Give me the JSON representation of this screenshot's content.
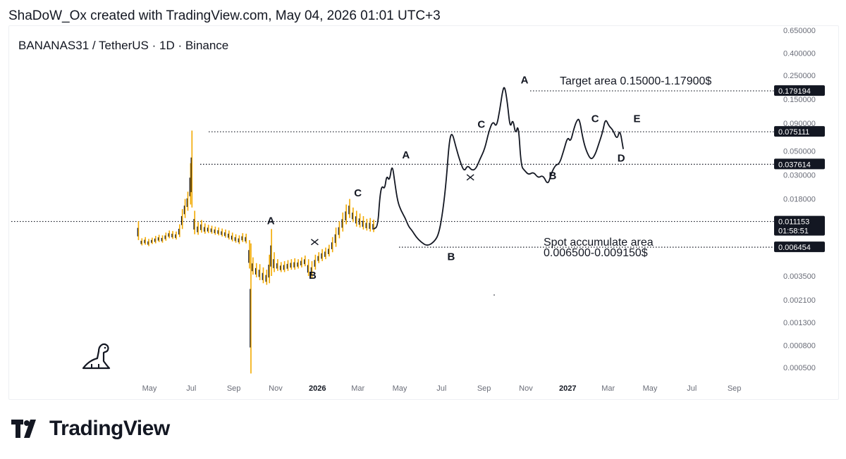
{
  "header": {
    "text": "ShaDoW_Ox created with TradingView.com, May 04, 2026 01:01 UTC+3"
  },
  "symbol": {
    "text": "BANANAS31 / TetherUS · 1D · Binance"
  },
  "brand": {
    "name": "TradingView",
    "logo_icon": "tradingview-logo-icon",
    "dino_icon": "dinosaur-icon"
  },
  "colors": {
    "candle": "#f2a900",
    "line": "#131722",
    "badge": "#131722",
    "dotted": "#131722"
  },
  "chart_data": {
    "type": "line",
    "title": "BANANAS31 / TetherUS · 1D · Binance",
    "y_scale": "log",
    "y_ticks": [
      "0.650000",
      "0.400000",
      "0.250000",
      "0.150000",
      "0.090000",
      "0.050000",
      "0.030000",
      "0.018000",
      "0.006454",
      "0.003500",
      "0.002100",
      "0.001300",
      "0.000800",
      "0.000500"
    ],
    "x_ticks": [
      {
        "label": "May",
        "bold": false
      },
      {
        "label": "Jul",
        "bold": false
      },
      {
        "label": "Sep",
        "bold": false
      },
      {
        "label": "Nov",
        "bold": false
      },
      {
        "label": "2026",
        "bold": true
      },
      {
        "label": "Mar",
        "bold": false
      },
      {
        "label": "May",
        "bold": false
      },
      {
        "label": "Jul",
        "bold": false
      },
      {
        "label": "Sep",
        "bold": false
      },
      {
        "label": "Nov",
        "bold": false
      },
      {
        "label": "2027",
        "bold": true
      },
      {
        "label": "Mar",
        "bold": false
      },
      {
        "label": "May",
        "bold": false
      },
      {
        "label": "Jul",
        "bold": false
      },
      {
        "label": "Sep",
        "bold": false
      }
    ],
    "price_lines": [
      {
        "value": 0.179194,
        "label": "0.179194"
      },
      {
        "value": 0.075111,
        "label": "0.075111"
      },
      {
        "value": 0.037614,
        "label": "0.037614"
      },
      {
        "value": 0.011153,
        "label": "0.011153",
        "sublabel": "01:58:51"
      },
      {
        "value": 0.006454,
        "label": "0.006454"
      }
    ],
    "annotations": [
      {
        "text": "Target area 0.15000-1.17900$"
      },
      {
        "text": "Spot accumulate area"
      },
      {
        "text": "0.006500-0.009150$"
      }
    ],
    "wave_labels": [
      {
        "text": "A",
        "date": "2025-10-25",
        "price": 0.0105
      },
      {
        "text": "B",
        "date": "2025-12-25",
        "price": 0.0033
      },
      {
        "text": "C",
        "date": "2026-03-01",
        "price": 0.019
      },
      {
        "text": "A",
        "date": "2026-05-10",
        "price": 0.0425
      },
      {
        "text": "B",
        "date": "2026-07-15",
        "price": 0.0049
      },
      {
        "text": "C",
        "date": "2026-08-28",
        "price": 0.082
      },
      {
        "text": "A",
        "date": "2026-10-30",
        "price": 0.21
      },
      {
        "text": "B",
        "date": "2026-12-10",
        "price": 0.0275
      },
      {
        "text": "C",
        "date": "2027-02-10",
        "price": 0.092
      },
      {
        "text": "D",
        "date": "2027-03-20",
        "price": 0.04
      },
      {
        "text": "E",
        "date": "2027-04-12",
        "price": 0.092
      }
    ],
    "candles": [
      [
        "2025-04-15",
        0.0112,
        0.0075
      ],
      [
        "2025-04-20",
        0.0078,
        0.0067
      ],
      [
        "2025-04-25",
        0.008,
        0.0068
      ],
      [
        "2025-04-30",
        0.0077,
        0.0066
      ],
      [
        "2025-05-05",
        0.0079,
        0.0069
      ],
      [
        "2025-05-10",
        0.0082,
        0.007
      ],
      [
        "2025-05-15",
        0.0084,
        0.0072
      ],
      [
        "2025-05-20",
        0.0083,
        0.0071
      ],
      [
        "2025-05-25",
        0.0088,
        0.0074
      ],
      [
        "2025-05-30",
        0.0092,
        0.0078
      ],
      [
        "2025-06-04",
        0.0091,
        0.0077
      ],
      [
        "2025-06-09",
        0.009,
        0.0076
      ],
      [
        "2025-06-14",
        0.0105,
        0.008
      ],
      [
        "2025-06-18",
        0.0145,
        0.0095
      ],
      [
        "2025-06-22",
        0.018,
        0.012
      ],
      [
        "2025-06-26",
        0.021,
        0.014
      ],
      [
        "2025-06-30",
        0.0385,
        0.016
      ],
      [
        "2025-07-02",
        0.077,
        0.015
      ],
      [
        "2025-07-06",
        0.014,
        0.0085
      ],
      [
        "2025-07-11",
        0.011,
        0.0084
      ],
      [
        "2025-07-16",
        0.0115,
        0.0088
      ],
      [
        "2025-07-21",
        0.0107,
        0.0086
      ],
      [
        "2025-07-26",
        0.0104,
        0.0087
      ],
      [
        "2025-07-31",
        0.0102,
        0.0086
      ],
      [
        "2025-08-05",
        0.01,
        0.0084
      ],
      [
        "2025-08-10",
        0.0098,
        0.0083
      ],
      [
        "2025-08-15",
        0.0096,
        0.0081
      ],
      [
        "2025-08-20",
        0.0094,
        0.0079
      ],
      [
        "2025-08-25",
        0.0092,
        0.0076
      ],
      [
        "2025-08-30",
        0.0088,
        0.0073
      ],
      [
        "2025-09-04",
        0.0085,
        0.0071
      ],
      [
        "2025-09-09",
        0.0083,
        0.0069
      ],
      [
        "2025-09-14",
        0.0087,
        0.0072
      ],
      [
        "2025-09-19",
        0.0086,
        0.007
      ],
      [
        "2025-09-24",
        0.0075,
        0.0041
      ],
      [
        "2025-09-26",
        0.007,
        0.00044
      ],
      [
        "2025-09-29",
        0.0052,
        0.0036
      ],
      [
        "2025-10-04",
        0.0046,
        0.0034
      ],
      [
        "2025-10-09",
        0.0045,
        0.0032
      ],
      [
        "2025-10-14",
        0.0042,
        0.003
      ],
      [
        "2025-10-19",
        0.004,
        0.0029
      ],
      [
        "2025-10-23",
        0.0055,
        0.003
      ],
      [
        "2025-10-26",
        0.0095,
        0.0035
      ],
      [
        "2025-10-30",
        0.0058,
        0.0038
      ],
      [
        "2025-11-04",
        0.005,
        0.0039
      ],
      [
        "2025-11-09",
        0.0047,
        0.0038
      ],
      [
        "2025-11-14",
        0.0048,
        0.0038
      ],
      [
        "2025-11-19",
        0.0049,
        0.0039
      ],
      [
        "2025-11-24",
        0.005,
        0.004
      ],
      [
        "2025-11-29",
        0.0051,
        0.004
      ],
      [
        "2025-12-04",
        0.005,
        0.0041
      ],
      [
        "2025-12-09",
        0.0052,
        0.0042
      ],
      [
        "2025-12-14",
        0.0054,
        0.0043
      ],
      [
        "2025-12-19",
        0.005,
        0.0035
      ],
      [
        "2025-12-24",
        0.0048,
        0.0033
      ],
      [
        "2025-12-29",
        0.0055,
        0.004
      ],
      [
        "2026-01-03",
        0.0058,
        0.0046
      ],
      [
        "2026-01-08",
        0.0062,
        0.0048
      ],
      [
        "2026-01-13",
        0.0064,
        0.005
      ],
      [
        "2026-01-18",
        0.0068,
        0.0053
      ],
      [
        "2026-01-23",
        0.008,
        0.0058
      ],
      [
        "2026-01-28",
        0.0098,
        0.0065
      ],
      [
        "2026-02-02",
        0.0112,
        0.0078
      ],
      [
        "2026-02-07",
        0.0135,
        0.009
      ],
      [
        "2026-02-12",
        0.016,
        0.0105
      ],
      [
        "2026-02-17",
        0.018,
        0.012
      ],
      [
        "2026-02-22",
        0.015,
        0.011
      ],
      [
        "2026-02-27",
        0.014,
        0.01
      ],
      [
        "2026-03-04",
        0.0132,
        0.0098
      ],
      [
        "2026-03-09",
        0.0125,
        0.0094
      ],
      [
        "2026-03-14",
        0.0118,
        0.0092
      ],
      [
        "2026-03-19",
        0.012,
        0.009
      ],
      [
        "2026-03-24",
        0.0116,
        0.0089
      ]
    ],
    "projection_path": [
      [
        "2026-03-24",
        0.0095
      ],
      [
        "2026-03-30",
        0.01
      ],
      [
        "2026-04-02",
        0.019
      ],
      [
        "2026-04-05",
        0.024
      ],
      [
        "2026-04-09",
        0.022
      ],
      [
        "2026-04-12",
        0.03
      ],
      [
        "2026-04-16",
        0.026
      ],
      [
        "2026-04-20",
        0.0385
      ],
      [
        "2026-04-24",
        0.025
      ],
      [
        "2026-04-28",
        0.017
      ],
      [
        "2026-05-03",
        0.014
      ],
      [
        "2026-05-09",
        0.012
      ],
      [
        "2026-05-14",
        0.01
      ],
      [
        "2026-05-19",
        0.0092
      ],
      [
        "2026-05-25",
        0.008
      ],
      [
        "2026-06-01",
        0.0072
      ],
      [
        "2026-06-10",
        0.0066
      ],
      [
        "2026-06-20",
        0.0072
      ],
      [
        "2026-06-27",
        0.0085
      ],
      [
        "2026-07-03",
        0.014
      ],
      [
        "2026-07-08",
        0.027
      ],
      [
        "2026-07-12",
        0.06
      ],
      [
        "2026-07-16",
        0.076
      ],
      [
        "2026-07-22",
        0.054
      ],
      [
        "2026-07-28",
        0.04
      ],
      [
        "2026-08-03",
        0.032
      ],
      [
        "2026-08-08",
        0.037
      ],
      [
        "2026-08-14",
        0.033
      ],
      [
        "2026-08-20",
        0.034
      ],
      [
        "2026-08-26",
        0.042
      ],
      [
        "2026-09-02",
        0.052
      ],
      [
        "2026-09-08",
        0.076
      ],
      [
        "2026-09-14",
        0.095
      ],
      [
        "2026-09-19",
        0.082
      ],
      [
        "2026-09-24",
        0.12
      ],
      [
        "2026-09-28",
        0.18
      ],
      [
        "2026-10-01",
        0.2
      ],
      [
        "2026-10-05",
        0.14
      ],
      [
        "2026-10-09",
        0.08
      ],
      [
        "2026-10-13",
        0.1
      ],
      [
        "2026-10-17",
        0.07
      ],
      [
        "2026-10-21",
        0.09
      ],
      [
        "2026-10-25",
        0.036
      ],
      [
        "2026-10-30",
        0.033
      ],
      [
        "2026-11-05",
        0.03
      ],
      [
        "2026-11-12",
        0.032
      ],
      [
        "2026-11-19",
        0.028
      ],
      [
        "2026-11-26",
        0.03
      ],
      [
        "2026-12-03",
        0.024
      ],
      [
        "2026-12-08",
        0.031
      ],
      [
        "2026-12-14",
        0.037
      ],
      [
        "2026-12-20",
        0.038
      ],
      [
        "2026-12-26",
        0.05
      ],
      [
        "2027-01-01",
        0.068
      ],
      [
        "2027-01-05",
        0.06
      ],
      [
        "2027-01-10",
        0.08
      ],
      [
        "2027-01-14",
        0.095
      ],
      [
        "2027-01-18",
        0.1
      ],
      [
        "2027-01-23",
        0.065
      ],
      [
        "2027-01-28",
        0.05
      ],
      [
        "2027-02-04",
        0.041
      ],
      [
        "2027-02-10",
        0.046
      ],
      [
        "2027-02-16",
        0.06
      ],
      [
        "2027-02-21",
        0.075
      ],
      [
        "2027-02-25",
        0.1
      ],
      [
        "2027-03-02",
        0.085
      ],
      [
        "2027-03-08",
        0.078
      ],
      [
        "2027-03-14",
        0.063
      ],
      [
        "2027-03-18",
        0.08
      ],
      [
        "2027-03-23",
        0.052
      ]
    ],
    "cross_markers": [
      {
        "date": "2025-12-28",
        "price": 0.0072
      },
      {
        "date": "2026-08-12",
        "price": 0.0285
      }
    ]
  }
}
